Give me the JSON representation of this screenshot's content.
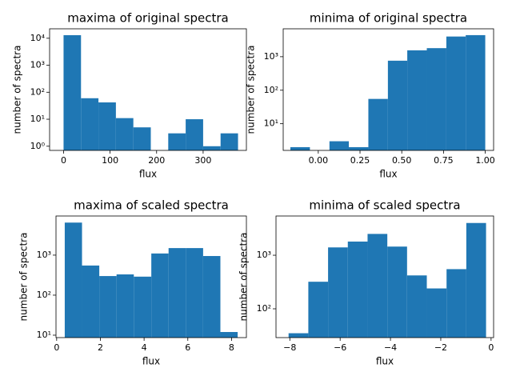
{
  "chart_data": [
    {
      "type": "histogram",
      "title": "maxima of original spectra",
      "x_label": "flux",
      "y_label": "number of spectra",
      "color": "#1f77b4",
      "yscale": "log",
      "bins": [
        0,
        37.5,
        75,
        112.5,
        150,
        187.5,
        225,
        262.5,
        300,
        337.5,
        375
      ],
      "values": [
        13000,
        60,
        42,
        11,
        5,
        0,
        3,
        10,
        1,
        3
      ],
      "xlim": [
        -30,
        393
      ],
      "xticks": [
        0,
        100,
        200,
        300
      ],
      "ylim": [
        0.7,
        22400
      ],
      "yticks": [
        {
          "value": 1,
          "label": "10⁰"
        },
        {
          "value": 10,
          "label": "10¹"
        },
        {
          "value": 100,
          "label": "10²"
        },
        {
          "value": 1000,
          "label": "10³"
        },
        {
          "value": 10000,
          "label": "10⁴"
        }
      ]
    },
    {
      "type": "histogram",
      "title": "minima of original spectra",
      "x_label": "flux",
      "y_label": "number of spectra",
      "color": "#1f77b4",
      "yscale": "log",
      "bins": [
        -0.167,
        -0.05,
        0.067,
        0.183,
        0.3,
        0.417,
        0.533,
        0.65,
        0.767,
        0.883,
        1.0
      ],
      "values": [
        2,
        0,
        3,
        2,
        55,
        760,
        1550,
        1800,
        4000,
        4400
      ],
      "xlim": [
        -0.21,
        1.05
      ],
      "xticks": [
        {
          "value": 0,
          "label": "0.00"
        },
        {
          "value": 0.25,
          "label": "0.25"
        },
        {
          "value": 0.5,
          "label": "0.50"
        },
        {
          "value": 0.75,
          "label": "0.75"
        },
        {
          "value": 1,
          "label": "1.00"
        }
      ],
      "ylim": [
        1.6,
        6800
      ],
      "yticks": [
        {
          "value": 10,
          "label": "10¹"
        },
        {
          "value": 100,
          "label": "10²"
        },
        {
          "value": 1000,
          "label": "10³"
        }
      ]
    },
    {
      "type": "histogram",
      "title": "maxima of scaled spectra",
      "x_label": "flux",
      "y_label": "number of spectra",
      "color": "#1f77b4",
      "yscale": "log",
      "bins": [
        0.37,
        1.16,
        1.95,
        2.74,
        3.53,
        4.33,
        5.12,
        5.91,
        6.7,
        7.49,
        8.28
      ],
      "values": [
        6500,
        550,
        300,
        330,
        290,
        1100,
        1500,
        1500,
        950,
        12
      ],
      "xlim": [
        -0.03,
        8.68
      ],
      "xticks": [
        0,
        2,
        4,
        6,
        8
      ],
      "ylim": [
        8.7,
        9500
      ],
      "yticks": [
        {
          "value": 10,
          "label": "10¹"
        },
        {
          "value": 100,
          "label": "10²"
        },
        {
          "value": 1000,
          "label": "10³"
        }
      ]
    },
    {
      "type": "histogram",
      "title": "minima of scaled spectra",
      "x_label": "flux",
      "y_label": "number of spectra",
      "color": "#1f77b4",
      "yscale": "log",
      "bins": [
        -8.05,
        -7.265,
        -6.48,
        -5.695,
        -4.91,
        -4.125,
        -3.34,
        -2.555,
        -1.77,
        -0.985,
        -0.2
      ],
      "values": [
        35,
        320,
        1400,
        1800,
        2500,
        1450,
        420,
        240,
        550,
        4000
      ],
      "xlim": [
        -8.55,
        0.1
      ],
      "xticks": [
        {
          "value": -8,
          "label": "−8"
        },
        {
          "value": -6,
          "label": "−6"
        },
        {
          "value": -4,
          "label": "−4"
        },
        {
          "value": -2,
          "label": "−2"
        },
        0
      ],
      "ylim": [
        29,
        5400
      ],
      "yticks": [
        {
          "value": 100,
          "label": "10²"
        },
        {
          "value": 1000,
          "label": "10³"
        }
      ]
    }
  ]
}
